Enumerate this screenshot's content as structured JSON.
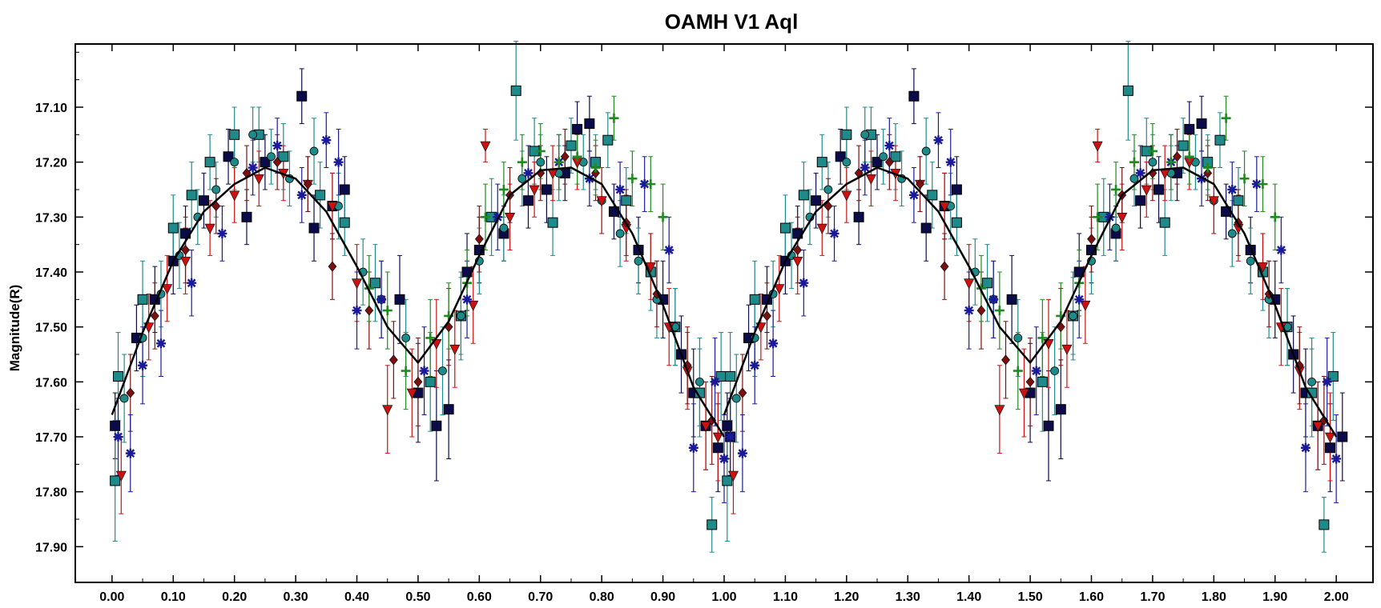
{
  "chart_data": {
    "type": "scatter",
    "title": "OAMH V1 Aql",
    "xlabel": "",
    "ylabel": "Magnitude(R)",
    "xlim": [
      -0.06,
      2.06
    ],
    "ylim": [
      17.965,
      16.985
    ],
    "y_inverted": true,
    "x_ticks": [
      "0.00",
      "0.10",
      "0.20",
      "0.30",
      "0.40",
      "0.50",
      "0.60",
      "0.70",
      "0.80",
      "0.90",
      "1.00",
      "1.10",
      "1.20",
      "1.30",
      "1.40",
      "1.50",
      "1.60",
      "1.70",
      "1.80",
      "1.90",
      "2.00"
    ],
    "y_ticks": [
      "17.10",
      "17.20",
      "17.30",
      "17.40",
      "17.50",
      "17.60",
      "17.70",
      "17.80",
      "17.90"
    ],
    "grid": false,
    "legend": "none",
    "phase_repeat": 1.0,
    "marker_series": [
      {
        "marker": "square",
        "color": "#0b0b4a"
      },
      {
        "marker": "square",
        "color": "#1e8a8a"
      },
      {
        "marker": "circle",
        "color": "#1e8a8a"
      },
      {
        "marker": "triangle-down",
        "color": "#cc1111"
      },
      {
        "marker": "diamond",
        "color": "#7a1010"
      },
      {
        "marker": "asterisk",
        "color": "#1a1a99"
      },
      {
        "marker": "plus",
        "color": "#1f8a1f"
      }
    ],
    "fit_curve": {
      "color": "#000000",
      "x": [
        0.0,
        0.05,
        0.1,
        0.15,
        0.2,
        0.25,
        0.3,
        0.35,
        0.4,
        0.45,
        0.5,
        0.55,
        0.6,
        0.65,
        0.7,
        0.75,
        0.8,
        0.85,
        0.9,
        0.95,
        1.0
      ],
      "y": [
        17.66,
        17.51,
        17.38,
        17.29,
        17.24,
        17.21,
        17.23,
        17.29,
        17.39,
        17.5,
        17.565,
        17.49,
        17.37,
        17.26,
        17.215,
        17.21,
        17.24,
        17.33,
        17.46,
        17.61,
        17.7
      ]
    },
    "series": [
      {
        "color": "#0b0b4a",
        "marker": "square",
        "x": [
          0.005,
          0.04,
          0.07,
          0.1,
          0.12,
          0.15,
          0.19,
          0.22,
          0.25,
          0.31,
          0.33,
          0.36,
          0.38,
          0.47,
          0.5,
          0.53,
          0.55,
          0.58,
          0.6,
          0.64,
          0.68,
          0.71,
          0.74,
          0.76,
          0.78,
          0.82,
          0.86,
          0.9,
          0.93,
          0.95,
          0.97,
          0.99,
          1.01
        ],
        "y": [
          17.68,
          17.52,
          17.45,
          17.38,
          17.33,
          17.27,
          17.19,
          17.3,
          17.2,
          17.08,
          17.32,
          17.28,
          17.25,
          17.45,
          17.62,
          17.68,
          17.65,
          17.4,
          17.36,
          17.33,
          17.27,
          17.25,
          17.22,
          17.14,
          17.13,
          17.29,
          17.36,
          17.45,
          17.55,
          17.62,
          17.68,
          17.72,
          17.7
        ],
        "err": [
          0.06,
          0.06,
          0.06,
          0.06,
          0.05,
          0.05,
          0.05,
          0.05,
          0.05,
          0.05,
          0.06,
          0.06,
          0.06,
          0.08,
          0.09,
          0.1,
          0.09,
          0.07,
          0.06,
          0.05,
          0.05,
          0.06,
          0.05,
          0.05,
          0.05,
          0.05,
          0.06,
          0.07,
          0.07,
          0.08,
          0.08,
          0.08,
          0.08
        ]
      },
      {
        "color": "#1e8a8a",
        "marker": "square",
        "x": [
          0.005,
          0.01,
          0.05,
          0.1,
          0.13,
          0.16,
          0.2,
          0.24,
          0.28,
          0.34,
          0.38,
          0.43,
          0.52,
          0.57,
          0.62,
          0.66,
          0.69,
          0.72,
          0.75,
          0.79,
          0.81,
          0.84,
          0.88,
          0.92,
          0.96,
          0.98,
          0.995
        ],
        "y": [
          17.78,
          17.59,
          17.45,
          17.32,
          17.26,
          17.2,
          17.15,
          17.15,
          17.19,
          17.26,
          17.31,
          17.42,
          17.6,
          17.48,
          17.3,
          17.07,
          17.18,
          17.31,
          17.17,
          17.2,
          17.16,
          17.27,
          17.4,
          17.5,
          17.62,
          17.86,
          17.59
        ],
        "err": [
          0.11,
          0.08,
          0.07,
          0.06,
          0.06,
          0.05,
          0.05,
          0.05,
          0.06,
          0.06,
          0.06,
          0.07,
          0.09,
          0.08,
          0.07,
          0.09,
          0.06,
          0.06,
          0.05,
          0.05,
          0.05,
          0.06,
          0.07,
          0.07,
          0.08,
          0.05,
          0.08
        ]
      },
      {
        "color": "#1e8a8a",
        "marker": "circle",
        "x": [
          0.02,
          0.05,
          0.08,
          0.11,
          0.14,
          0.17,
          0.2,
          0.23,
          0.26,
          0.29,
          0.33,
          0.37,
          0.41,
          0.44,
          0.48,
          0.54,
          0.57,
          0.6,
          0.64,
          0.67,
          0.7,
          0.73,
          0.77,
          0.8,
          0.83,
          0.86,
          0.89,
          0.92,
          0.96
        ],
        "y": [
          17.63,
          17.52,
          17.44,
          17.37,
          17.3,
          17.25,
          17.2,
          17.15,
          17.19,
          17.23,
          17.18,
          17.28,
          17.4,
          17.45,
          17.52,
          17.58,
          17.48,
          17.38,
          17.32,
          17.23,
          17.2,
          17.22,
          17.2,
          17.27,
          17.33,
          17.38,
          17.45,
          17.5,
          17.6
        ],
        "err": [
          0.08,
          0.07,
          0.06,
          0.06,
          0.05,
          0.05,
          0.05,
          0.05,
          0.05,
          0.05,
          0.06,
          0.06,
          0.06,
          0.07,
          0.07,
          0.08,
          0.07,
          0.06,
          0.06,
          0.05,
          0.05,
          0.05,
          0.05,
          0.06,
          0.06,
          0.06,
          0.07,
          0.07,
          0.08
        ]
      },
      {
        "color": "#cc1111",
        "marker": "triangle-down",
        "x": [
          0.015,
          0.06,
          0.09,
          0.12,
          0.16,
          0.2,
          0.24,
          0.28,
          0.32,
          0.36,
          0.4,
          0.45,
          0.49,
          0.53,
          0.56,
          0.59,
          0.61,
          0.65,
          0.69,
          0.72,
          0.76,
          0.8,
          0.84,
          0.88,
          0.91,
          0.94,
          0.97,
          0.99
        ],
        "y": [
          17.77,
          17.5,
          17.43,
          17.38,
          17.32,
          17.26,
          17.23,
          17.22,
          17.24,
          17.28,
          17.42,
          17.65,
          17.62,
          17.53,
          17.54,
          17.46,
          17.17,
          17.3,
          17.25,
          17.22,
          17.2,
          17.27,
          17.32,
          17.39,
          17.5,
          17.58,
          17.68,
          17.7
        ],
        "err": [
          0.07,
          0.06,
          0.06,
          0.06,
          0.05,
          0.05,
          0.05,
          0.05,
          0.05,
          0.06,
          0.07,
          0.08,
          0.08,
          0.08,
          0.07,
          0.07,
          0.03,
          0.06,
          0.05,
          0.05,
          0.05,
          0.06,
          0.06,
          0.06,
          0.07,
          0.07,
          0.08,
          0.08
        ]
      },
      {
        "color": "#7a1010",
        "marker": "diamond",
        "x": [
          0.03,
          0.07,
          0.12,
          0.17,
          0.22,
          0.27,
          0.32,
          0.36,
          0.42,
          0.46,
          0.5,
          0.55,
          0.6,
          0.65,
          0.7,
          0.74,
          0.79,
          0.84,
          0.89,
          0.94,
          0.98
        ],
        "y": [
          17.62,
          17.48,
          17.36,
          17.28,
          17.22,
          17.2,
          17.24,
          17.39,
          17.47,
          17.56,
          17.6,
          17.5,
          17.34,
          17.26,
          17.22,
          17.19,
          17.22,
          17.31,
          17.44,
          17.57,
          17.67
        ],
        "err": [
          0.07,
          0.06,
          0.06,
          0.05,
          0.05,
          0.05,
          0.05,
          0.06,
          0.07,
          0.07,
          0.08,
          0.07,
          0.06,
          0.05,
          0.05,
          0.05,
          0.05,
          0.06,
          0.06,
          0.07,
          0.08
        ]
      },
      {
        "color": "#1a1a99",
        "marker": "asterisk",
        "x": [
          0.01,
          0.03,
          0.05,
          0.08,
          0.13,
          0.18,
          0.23,
          0.27,
          0.31,
          0.35,
          0.37,
          0.4,
          0.44,
          0.51,
          0.58,
          0.63,
          0.68,
          0.73,
          0.78,
          0.83,
          0.87,
          0.91,
          0.95,
          0.985,
          1.0
        ],
        "y": [
          17.7,
          17.73,
          17.57,
          17.53,
          17.42,
          17.33,
          17.21,
          17.17,
          17.26,
          17.16,
          17.2,
          17.47,
          17.45,
          17.58,
          17.45,
          17.3,
          17.22,
          17.2,
          17.23,
          17.25,
          17.24,
          17.36,
          17.72,
          17.6,
          17.74
        ],
        "err": [
          0.07,
          0.07,
          0.07,
          0.06,
          0.06,
          0.05,
          0.05,
          0.05,
          0.05,
          0.05,
          0.06,
          0.07,
          0.07,
          0.08,
          0.07,
          0.06,
          0.05,
          0.05,
          0.05,
          0.05,
          0.05,
          0.06,
          0.08,
          0.08,
          0.08
        ]
      },
      {
        "color": "#1f8a1f",
        "marker": "plus",
        "x": [
          0.42,
          0.45,
          0.48,
          0.52,
          0.55,
          0.58,
          0.61,
          0.64,
          0.67,
          0.7,
          0.73,
          0.76,
          0.79,
          0.82,
          0.85,
          0.88,
          0.9
        ],
        "y": [
          17.43,
          17.47,
          17.58,
          17.52,
          17.48,
          17.42,
          17.3,
          17.25,
          17.2,
          17.18,
          17.2,
          17.19,
          17.21,
          17.12,
          17.23,
          17.24,
          17.3
        ],
        "err": [
          0.06,
          0.07,
          0.07,
          0.07,
          0.06,
          0.06,
          0.06,
          0.05,
          0.05,
          0.05,
          0.05,
          0.05,
          0.05,
          0.04,
          0.05,
          0.05,
          0.06
        ]
      }
    ]
  }
}
